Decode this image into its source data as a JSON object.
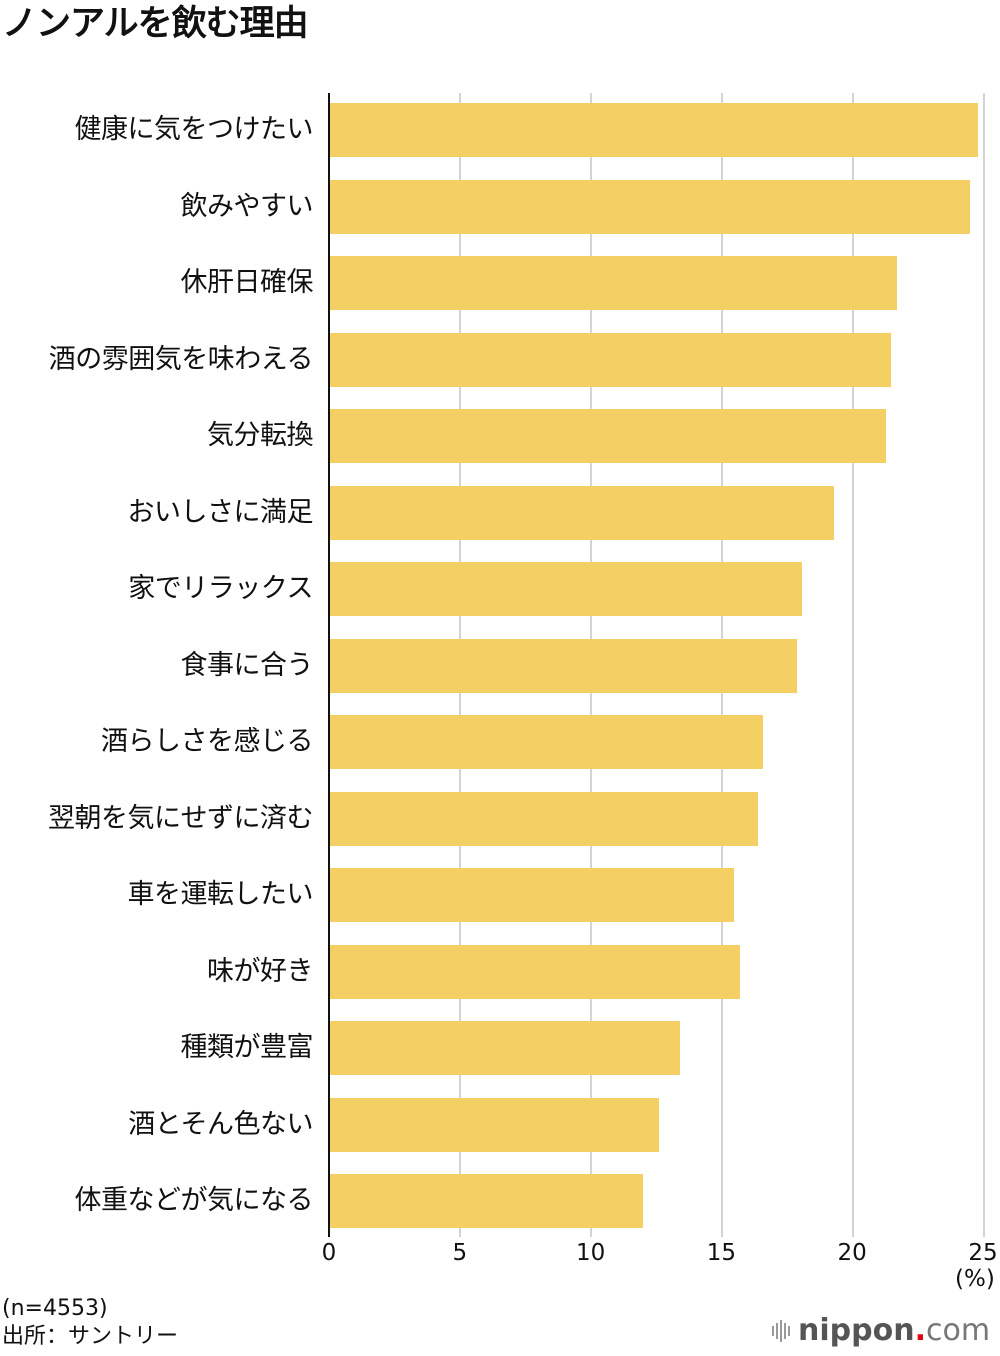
{
  "title": "ノンアルを飲む理由",
  "footer": {
    "sample": "(n=4553)",
    "source": "出所：サントリー"
  },
  "logo": {
    "name": "nippon",
    "dot": ".",
    "suffix": "com"
  },
  "colors": {
    "bar": "#f4cf63",
    "grid": "#d4d4d4",
    "axis": "#111111",
    "logo_dot": "#e60012"
  },
  "chart_data": {
    "type": "bar",
    "orientation": "horizontal",
    "title": "ノンアルを飲む理由",
    "xlabel": "(%)",
    "ylabel": "",
    "xlim": [
      0,
      25
    ],
    "xticks": [
      0,
      5,
      10,
      15,
      20,
      25
    ],
    "grid": true,
    "legend": null,
    "categories": [
      "健康に気をつけたい",
      "飲みやすい",
      "休肝日確保",
      "酒の雰囲気を味わえる",
      "気分転換",
      "おいしさに満足",
      "家でリラックス",
      "食事に合う",
      "酒らしさを感じる",
      "翌朝を気にせずに済む",
      "車を運転したい",
      "味が好き",
      "種類が豊富",
      "酒とそん色ない",
      "体重などが気になる"
    ],
    "values": [
      24.8,
      24.5,
      21.7,
      21.5,
      21.3,
      19.3,
      18.1,
      17.9,
      16.6,
      16.4,
      15.5,
      15.7,
      13.4,
      12.6,
      12.0
    ],
    "annotations": [
      "(n=4553)",
      "出所：サントリー"
    ]
  }
}
